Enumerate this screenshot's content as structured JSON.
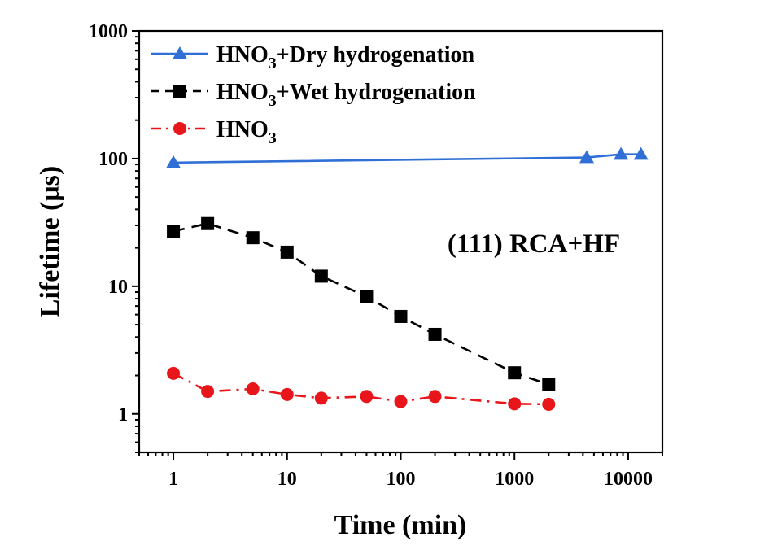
{
  "chart_data": {
    "type": "line",
    "title": "",
    "xlabel": "Time (min)",
    "ylabel": "Lifetime (μs)",
    "xscale": "log",
    "yscale": "log",
    "xlim": [
      0.5,
      20000
    ],
    "ylim": [
      0.5,
      1000
    ],
    "x_ticks": [
      1,
      10,
      100,
      1000,
      10000
    ],
    "x_tick_labels": [
      "1",
      "10",
      "100",
      "1000",
      "10000"
    ],
    "y_ticks": [
      1,
      10,
      100,
      1000
    ],
    "y_tick_labels": [
      "1",
      "10",
      "100",
      "1000"
    ],
    "annotation": "(111) RCA+HF",
    "legend_position": "top-left",
    "series": [
      {
        "name_main": "HNO",
        "name_sub": "3",
        "name_rest": "+Dry hydrogenation",
        "color": "#2f6fd6",
        "marker": "triangle",
        "line": "solid",
        "x": [
          1,
          4320,
          8640,
          12960
        ],
        "y": [
          93,
          102,
          108,
          108
        ]
      },
      {
        "name_main": "HNO",
        "name_sub": "3",
        "name_rest": "+Wet hydrogenation",
        "color": "#000000",
        "marker": "square",
        "line": "dash",
        "x": [
          1,
          2,
          5,
          10,
          20,
          50,
          100,
          200,
          1000,
          2000
        ],
        "y": [
          27,
          31,
          24,
          18.5,
          12,
          8.3,
          5.8,
          4.2,
          2.1,
          1.7
        ]
      },
      {
        "name_main": "HNO",
        "name_sub": "3",
        "name_rest": "",
        "color": "#e8161a",
        "marker": "circle",
        "line": "dashdot",
        "x": [
          1,
          2,
          5,
          10,
          20,
          50,
          100,
          200,
          1000,
          2000
        ],
        "y": [
          2.08,
          1.5,
          1.57,
          1.42,
          1.33,
          1.37,
          1.25,
          1.37,
          1.2,
          1.19
        ]
      }
    ]
  }
}
